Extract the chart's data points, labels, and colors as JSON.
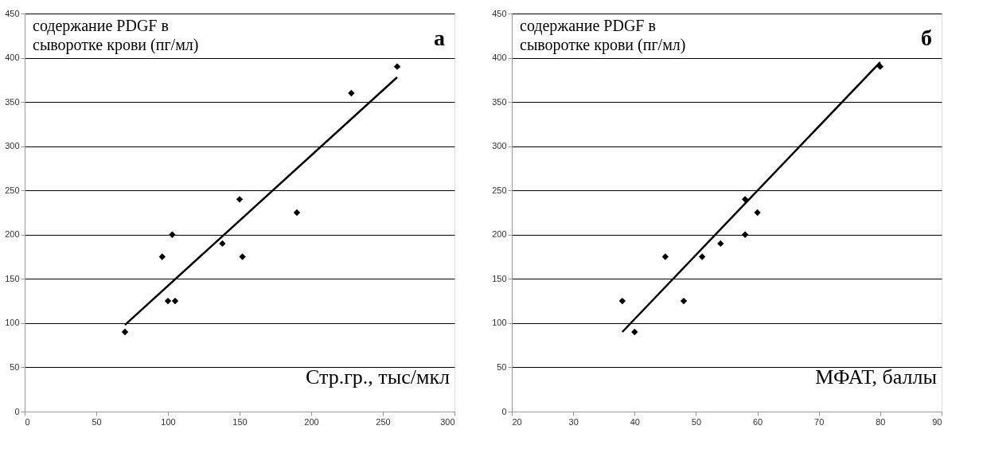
{
  "chart_data": [
    {
      "type": "scatter",
      "title": "а",
      "xlabel": "Стр.гр., тыс/мкл",
      "ylabel": "содержание PDGF в\nсыворотке крови (пг/мл)",
      "xlim": [
        0,
        300
      ],
      "xticks": [
        0,
        50,
        100,
        150,
        200,
        250,
        300
      ],
      "ylim": [
        0,
        450
      ],
      "yticks": [
        0,
        50,
        100,
        150,
        200,
        250,
        300,
        350,
        400,
        450
      ],
      "grid": "y",
      "series": [
        {
          "marker": "diamond",
          "color": "#000000",
          "x": [
            70,
            96,
            100,
            103,
            105,
            138,
            150,
            152,
            190,
            228,
            260
          ],
          "values": [
            90,
            175,
            125,
            200,
            125,
            190,
            240,
            175,
            225,
            360,
            390
          ]
        },
        {
          "type": "line",
          "marker": "none",
          "color": "#000000",
          "x": [
            70,
            260
          ],
          "values": [
            98,
            378
          ]
        }
      ]
    },
    {
      "type": "scatter",
      "title": "б",
      "xlabel": "МФАТ, баллы",
      "ylabel": "содержание PDGF в\nсыворотке крови (пг/мл)",
      "xlim": [
        20,
        90
      ],
      "xticks": [
        20,
        30,
        40,
        50,
        60,
        70,
        80,
        90
      ],
      "ylim": [
        0,
        450
      ],
      "yticks": [
        0,
        50,
        100,
        150,
        200,
        250,
        300,
        350,
        400,
        450
      ],
      "grid": "y",
      "series": [
        {
          "marker": "diamond",
          "color": "#000000",
          "x": [
            38,
            40,
            45,
            48,
            51,
            54,
            58,
            58,
            60,
            80
          ],
          "values": [
            125,
            90,
            175,
            125,
            175,
            190,
            240,
            200,
            225,
            390
          ]
        },
        {
          "type": "line",
          "marker": "none",
          "color": "#000000",
          "x": [
            38,
            80
          ],
          "values": [
            90,
            395
          ]
        }
      ]
    }
  ]
}
